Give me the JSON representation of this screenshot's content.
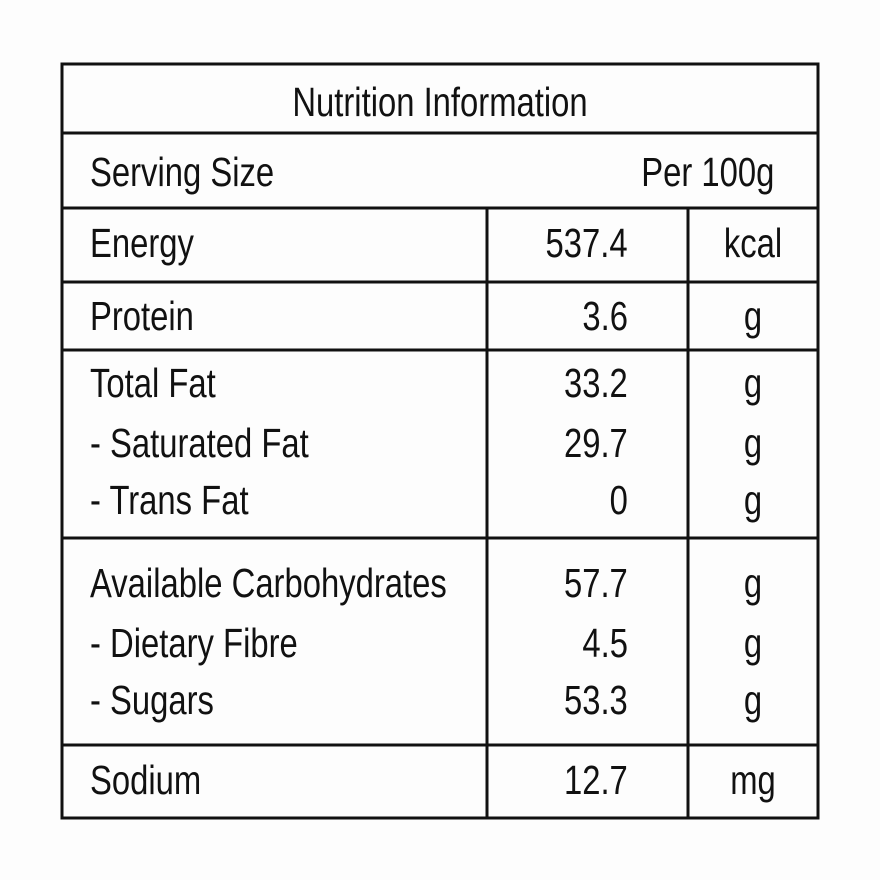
{
  "title": "Nutrition Information",
  "serving": {
    "label": "Serving Size",
    "value": "Per 100g"
  },
  "groups": [
    {
      "rows": [
        {
          "name": "Energy",
          "value": "537.4",
          "unit": "kcal"
        }
      ]
    },
    {
      "rows": [
        {
          "name": "Protein",
          "value": "3.6",
          "unit": "g"
        }
      ]
    },
    {
      "rows": [
        {
          "name": "Total Fat",
          "value": "33.2",
          "unit": "g"
        },
        {
          "name": "- Saturated Fat",
          "value": "29.7",
          "unit": "g"
        },
        {
          "name": "- Trans Fat",
          "value": "0",
          "unit": "g"
        }
      ]
    },
    {
      "rows": [
        {
          "name": "Available Carbohydrates",
          "value": "57.7",
          "unit": "g"
        },
        {
          "name": "- Dietary Fibre",
          "value": "4.5",
          "unit": "g"
        },
        {
          "name": "- Sugars",
          "value": "53.3",
          "unit": "g"
        }
      ]
    },
    {
      "rows": [
        {
          "name": "Sodium",
          "value": "12.7",
          "unit": "mg"
        }
      ]
    }
  ]
}
